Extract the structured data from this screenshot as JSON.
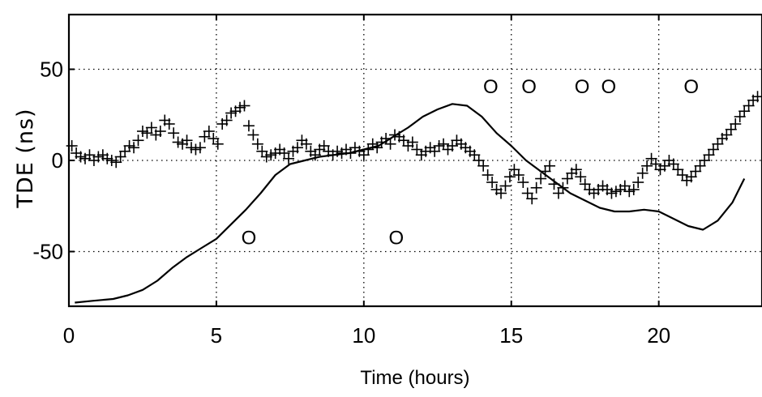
{
  "chart_data": {
    "type": "scatter",
    "title": "",
    "xlabel": "Time (hours)",
    "ylabel": "TDE (ns)",
    "xlim": [
      0,
      23.5
    ],
    "ylim": [
      -80,
      80
    ],
    "xticks": [
      0,
      5,
      10,
      15,
      20
    ],
    "xtick_labels": [
      "0",
      "5",
      "10",
      "15",
      "20"
    ],
    "yticks": [
      -50,
      0,
      50
    ],
    "ytick_labels": [
      "-50",
      "0",
      "50"
    ],
    "grid": true,
    "legend": "none",
    "series": [
      {
        "marker": "+",
        "points": [
          [
            0.1,
            8
          ],
          [
            0.25,
            4
          ],
          [
            0.4,
            2
          ],
          [
            0.55,
            1
          ],
          [
            0.7,
            3
          ],
          [
            0.85,
            0
          ],
          [
            1.0,
            2
          ],
          [
            1.15,
            3
          ],
          [
            1.3,
            1
          ],
          [
            1.45,
            0
          ],
          [
            1.6,
            -1
          ],
          [
            1.75,
            2
          ],
          [
            1.9,
            5
          ],
          [
            2.05,
            8
          ],
          [
            2.2,
            7
          ],
          [
            2.35,
            11
          ],
          [
            2.5,
            16
          ],
          [
            2.65,
            15
          ],
          [
            2.8,
            18
          ],
          [
            2.95,
            14
          ],
          [
            3.1,
            16
          ],
          [
            3.25,
            22
          ],
          [
            3.4,
            20
          ],
          [
            3.55,
            15
          ],
          [
            3.7,
            10
          ],
          [
            3.85,
            9
          ],
          [
            4.0,
            11
          ],
          [
            4.15,
            7
          ],
          [
            4.3,
            6
          ],
          [
            4.45,
            7
          ],
          [
            4.6,
            13
          ],
          [
            4.75,
            16
          ],
          [
            4.9,
            12
          ],
          [
            5.05,
            9
          ],
          [
            5.2,
            20
          ],
          [
            5.35,
            22
          ],
          [
            5.5,
            26
          ],
          [
            5.65,
            27
          ],
          [
            5.8,
            29
          ],
          [
            5.95,
            30
          ],
          [
            6.1,
            19
          ],
          [
            6.25,
            14
          ],
          [
            6.4,
            9
          ],
          [
            6.55,
            5
          ],
          [
            6.7,
            2
          ],
          [
            6.85,
            3
          ],
          [
            7.0,
            4
          ],
          [
            7.15,
            6
          ],
          [
            7.3,
            4
          ],
          [
            7.45,
            1
          ],
          [
            7.6,
            5
          ],
          [
            7.75,
            7
          ],
          [
            7.9,
            11
          ],
          [
            8.05,
            9
          ],
          [
            8.2,
            5
          ],
          [
            8.35,
            3
          ],
          [
            8.5,
            6
          ],
          [
            8.65,
            8
          ],
          [
            8.8,
            5
          ],
          [
            8.95,
            3
          ],
          [
            9.1,
            5
          ],
          [
            9.25,
            4
          ],
          [
            9.4,
            6
          ],
          [
            9.55,
            4
          ],
          [
            9.7,
            7
          ],
          [
            9.85,
            5
          ],
          [
            10.0,
            3
          ],
          [
            10.15,
            6
          ],
          [
            10.3,
            9
          ],
          [
            10.45,
            7
          ],
          [
            10.6,
            10
          ],
          [
            10.75,
            12
          ],
          [
            10.9,
            9
          ],
          [
            11.05,
            14
          ],
          [
            11.2,
            13
          ],
          [
            11.35,
            11
          ],
          [
            11.5,
            8
          ],
          [
            11.65,
            10
          ],
          [
            11.8,
            6
          ],
          [
            11.95,
            3
          ],
          [
            12.1,
            5
          ],
          [
            12.25,
            7
          ],
          [
            12.4,
            5
          ],
          [
            12.55,
            8
          ],
          [
            12.7,
            9
          ],
          [
            12.85,
            6
          ],
          [
            13.0,
            8
          ],
          [
            13.15,
            11
          ],
          [
            13.3,
            9
          ],
          [
            13.45,
            7
          ],
          [
            13.6,
            5
          ],
          [
            13.75,
            3
          ],
          [
            13.9,
            0
          ],
          [
            14.05,
            -3
          ],
          [
            14.2,
            -8
          ],
          [
            14.35,
            -12
          ],
          [
            14.5,
            -16
          ],
          [
            14.65,
            -18
          ],
          [
            14.8,
            -14
          ],
          [
            14.95,
            -9
          ],
          [
            15.1,
            -5
          ],
          [
            15.25,
            -8
          ],
          [
            15.4,
            -12
          ],
          [
            15.55,
            -18
          ],
          [
            15.7,
            -21
          ],
          [
            15.85,
            -15
          ],
          [
            16.0,
            -10
          ],
          [
            16.15,
            -6
          ],
          [
            16.3,
            -3
          ],
          [
            16.45,
            -13
          ],
          [
            16.6,
            -18
          ],
          [
            16.75,
            -15
          ],
          [
            16.9,
            -10
          ],
          [
            17.05,
            -7
          ],
          [
            17.2,
            -5
          ],
          [
            17.35,
            -9
          ],
          [
            17.5,
            -13
          ],
          [
            17.65,
            -16
          ],
          [
            17.8,
            -18
          ],
          [
            17.95,
            -16
          ],
          [
            18.1,
            -14
          ],
          [
            18.25,
            -16
          ],
          [
            18.4,
            -18
          ],
          [
            18.55,
            -17
          ],
          [
            18.7,
            -16
          ],
          [
            18.85,
            -14
          ],
          [
            19.0,
            -17
          ],
          [
            19.15,
            -16
          ],
          [
            19.3,
            -12
          ],
          [
            19.45,
            -7
          ],
          [
            19.6,
            -3
          ],
          [
            19.75,
            1
          ],
          [
            19.9,
            -2
          ],
          [
            20.05,
            -5
          ],
          [
            20.2,
            -3
          ],
          [
            20.35,
            0
          ],
          [
            20.5,
            -2
          ],
          [
            20.65,
            -5
          ],
          [
            20.8,
            -8
          ],
          [
            20.95,
            -11
          ],
          [
            21.1,
            -9
          ],
          [
            21.25,
            -6
          ],
          [
            21.4,
            -3
          ],
          [
            21.55,
            0
          ],
          [
            21.7,
            3
          ],
          [
            21.85,
            6
          ],
          [
            22.0,
            9
          ],
          [
            22.15,
            12
          ],
          [
            22.3,
            14
          ],
          [
            22.45,
            17
          ],
          [
            22.6,
            20
          ],
          [
            22.75,
            24
          ],
          [
            22.9,
            27
          ],
          [
            23.05,
            30
          ],
          [
            23.2,
            33
          ],
          [
            23.35,
            35
          ]
        ]
      },
      {
        "marker": "O",
        "points": [
          [
            6.1,
            -42
          ],
          [
            11.1,
            -42
          ],
          [
            14.3,
            41
          ],
          [
            15.6,
            41
          ],
          [
            17.4,
            41
          ],
          [
            18.3,
            41
          ],
          [
            21.1,
            41
          ]
        ]
      },
      {
        "marker": "line",
        "points": [
          [
            0.2,
            -78
          ],
          [
            0.8,
            -77
          ],
          [
            1.5,
            -76
          ],
          [
            2.0,
            -74
          ],
          [
            2.5,
            -71
          ],
          [
            3.0,
            -66
          ],
          [
            3.5,
            -59
          ],
          [
            4.0,
            -53
          ],
          [
            4.5,
            -48
          ],
          [
            5.0,
            -43
          ],
          [
            5.5,
            -35
          ],
          [
            6.0,
            -27
          ],
          [
            6.5,
            -18
          ],
          [
            7.0,
            -8
          ],
          [
            7.5,
            -2
          ],
          [
            8.0,
            0
          ],
          [
            8.5,
            2
          ],
          [
            9.0,
            3
          ],
          [
            9.5,
            4
          ],
          [
            10.0,
            6
          ],
          [
            10.5,
            8
          ],
          [
            11.0,
            13
          ],
          [
            11.5,
            18
          ],
          [
            12.0,
            24
          ],
          [
            12.5,
            28
          ],
          [
            13.0,
            31
          ],
          [
            13.5,
            30
          ],
          [
            14.0,
            24
          ],
          [
            14.5,
            15
          ],
          [
            15.0,
            8
          ],
          [
            15.5,
            0
          ],
          [
            16.0,
            -6
          ],
          [
            16.5,
            -12
          ],
          [
            17.0,
            -18
          ],
          [
            17.5,
            -22
          ],
          [
            18.0,
            -26
          ],
          [
            18.5,
            -28
          ],
          [
            19.0,
            -28
          ],
          [
            19.5,
            -27
          ],
          [
            20.0,
            -28
          ],
          [
            20.5,
            -32
          ],
          [
            21.0,
            -36
          ],
          [
            21.5,
            -38
          ],
          [
            22.0,
            -33
          ],
          [
            22.5,
            -23
          ],
          [
            22.9,
            -10
          ]
        ]
      }
    ]
  }
}
